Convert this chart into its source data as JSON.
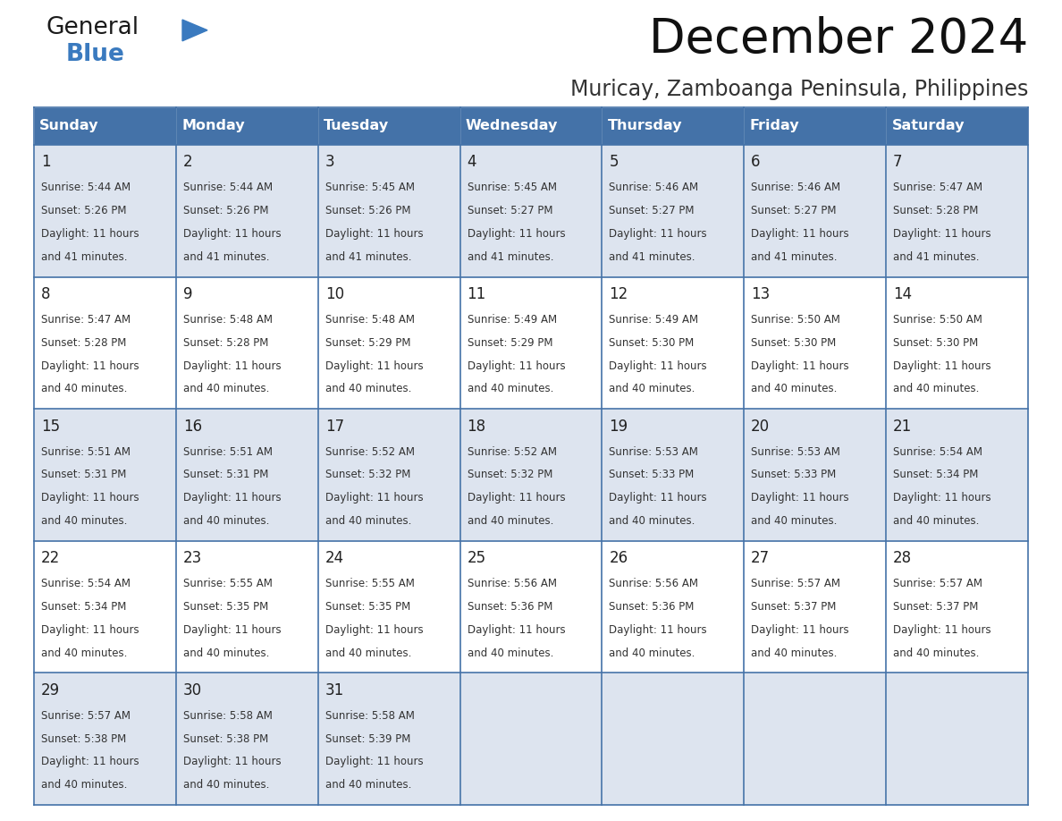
{
  "title": "December 2024",
  "subtitle": "Muricay, Zamboanga Peninsula, Philippines",
  "days_of_week": [
    "Sunday",
    "Monday",
    "Tuesday",
    "Wednesday",
    "Thursday",
    "Friday",
    "Saturday"
  ],
  "header_bg_color": "#4472a8",
  "header_text_color": "#ffffff",
  "cell_bg_even": "#dde4ef",
  "cell_bg_odd": "#ffffff",
  "border_color": "#4472a8",
  "day_number_color": "#222222",
  "cell_text_color": "#333333",
  "title_color": "#111111",
  "subtitle_color": "#333333",
  "logo_general_color": "#1a1a1a",
  "logo_blue_color": "#3a7abf",
  "calendar_data": [
    [
      {
        "day": 1,
        "sunrise": "5:44 AM",
        "sunset": "5:26 PM",
        "daylight_hours": 11,
        "daylight_minutes": 41
      },
      {
        "day": 2,
        "sunrise": "5:44 AM",
        "sunset": "5:26 PM",
        "daylight_hours": 11,
        "daylight_minutes": 41
      },
      {
        "day": 3,
        "sunrise": "5:45 AM",
        "sunset": "5:26 PM",
        "daylight_hours": 11,
        "daylight_minutes": 41
      },
      {
        "day": 4,
        "sunrise": "5:45 AM",
        "sunset": "5:27 PM",
        "daylight_hours": 11,
        "daylight_minutes": 41
      },
      {
        "day": 5,
        "sunrise": "5:46 AM",
        "sunset": "5:27 PM",
        "daylight_hours": 11,
        "daylight_minutes": 41
      },
      {
        "day": 6,
        "sunrise": "5:46 AM",
        "sunset": "5:27 PM",
        "daylight_hours": 11,
        "daylight_minutes": 41
      },
      {
        "day": 7,
        "sunrise": "5:47 AM",
        "sunset": "5:28 PM",
        "daylight_hours": 11,
        "daylight_minutes": 41
      }
    ],
    [
      {
        "day": 8,
        "sunrise": "5:47 AM",
        "sunset": "5:28 PM",
        "daylight_hours": 11,
        "daylight_minutes": 40
      },
      {
        "day": 9,
        "sunrise": "5:48 AM",
        "sunset": "5:28 PM",
        "daylight_hours": 11,
        "daylight_minutes": 40
      },
      {
        "day": 10,
        "sunrise": "5:48 AM",
        "sunset": "5:29 PM",
        "daylight_hours": 11,
        "daylight_minutes": 40
      },
      {
        "day": 11,
        "sunrise": "5:49 AM",
        "sunset": "5:29 PM",
        "daylight_hours": 11,
        "daylight_minutes": 40
      },
      {
        "day": 12,
        "sunrise": "5:49 AM",
        "sunset": "5:30 PM",
        "daylight_hours": 11,
        "daylight_minutes": 40
      },
      {
        "day": 13,
        "sunrise": "5:50 AM",
        "sunset": "5:30 PM",
        "daylight_hours": 11,
        "daylight_minutes": 40
      },
      {
        "day": 14,
        "sunrise": "5:50 AM",
        "sunset": "5:30 PM",
        "daylight_hours": 11,
        "daylight_minutes": 40
      }
    ],
    [
      {
        "day": 15,
        "sunrise": "5:51 AM",
        "sunset": "5:31 PM",
        "daylight_hours": 11,
        "daylight_minutes": 40
      },
      {
        "day": 16,
        "sunrise": "5:51 AM",
        "sunset": "5:31 PM",
        "daylight_hours": 11,
        "daylight_minutes": 40
      },
      {
        "day": 17,
        "sunrise": "5:52 AM",
        "sunset": "5:32 PM",
        "daylight_hours": 11,
        "daylight_minutes": 40
      },
      {
        "day": 18,
        "sunrise": "5:52 AM",
        "sunset": "5:32 PM",
        "daylight_hours": 11,
        "daylight_minutes": 40
      },
      {
        "day": 19,
        "sunrise": "5:53 AM",
        "sunset": "5:33 PM",
        "daylight_hours": 11,
        "daylight_minutes": 40
      },
      {
        "day": 20,
        "sunrise": "5:53 AM",
        "sunset": "5:33 PM",
        "daylight_hours": 11,
        "daylight_minutes": 40
      },
      {
        "day": 21,
        "sunrise": "5:54 AM",
        "sunset": "5:34 PM",
        "daylight_hours": 11,
        "daylight_minutes": 40
      }
    ],
    [
      {
        "day": 22,
        "sunrise": "5:54 AM",
        "sunset": "5:34 PM",
        "daylight_hours": 11,
        "daylight_minutes": 40
      },
      {
        "day": 23,
        "sunrise": "5:55 AM",
        "sunset": "5:35 PM",
        "daylight_hours": 11,
        "daylight_minutes": 40
      },
      {
        "day": 24,
        "sunrise": "5:55 AM",
        "sunset": "5:35 PM",
        "daylight_hours": 11,
        "daylight_minutes": 40
      },
      {
        "day": 25,
        "sunrise": "5:56 AM",
        "sunset": "5:36 PM",
        "daylight_hours": 11,
        "daylight_minutes": 40
      },
      {
        "day": 26,
        "sunrise": "5:56 AM",
        "sunset": "5:36 PM",
        "daylight_hours": 11,
        "daylight_minutes": 40
      },
      {
        "day": 27,
        "sunrise": "5:57 AM",
        "sunset": "5:37 PM",
        "daylight_hours": 11,
        "daylight_minutes": 40
      },
      {
        "day": 28,
        "sunrise": "5:57 AM",
        "sunset": "5:37 PM",
        "daylight_hours": 11,
        "daylight_minutes": 40
      }
    ],
    [
      {
        "day": 29,
        "sunrise": "5:57 AM",
        "sunset": "5:38 PM",
        "daylight_hours": 11,
        "daylight_minutes": 40
      },
      {
        "day": 30,
        "sunrise": "5:58 AM",
        "sunset": "5:38 PM",
        "daylight_hours": 11,
        "daylight_minutes": 40
      },
      {
        "day": 31,
        "sunrise": "5:58 AM",
        "sunset": "5:39 PM",
        "daylight_hours": 11,
        "daylight_minutes": 40
      },
      null,
      null,
      null,
      null
    ]
  ],
  "fig_width": 11.88,
  "fig_height": 9.18,
  "dpi": 100
}
